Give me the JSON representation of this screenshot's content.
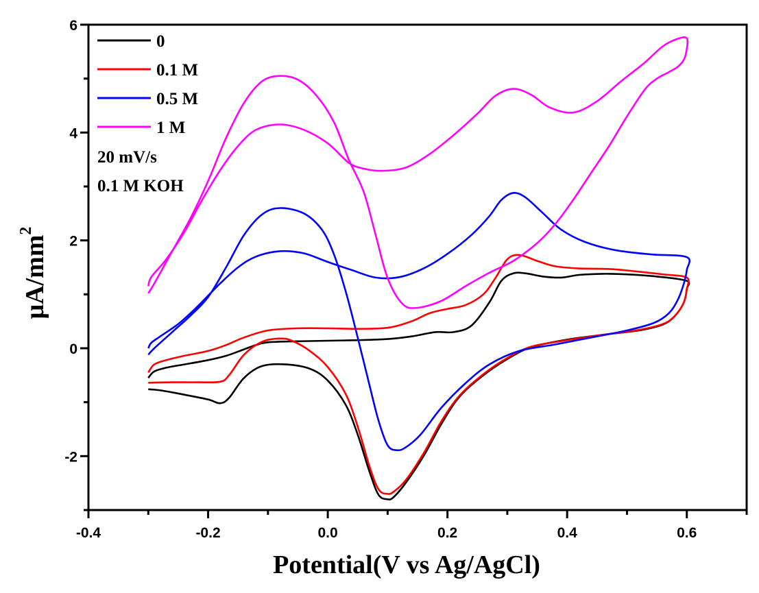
{
  "chart_data": {
    "type": "line",
    "title": "",
    "xlabel": "Potential(V vs Ag/AgCl)",
    "ylabel": "μA/mm",
    "ylabel_superscript": "2",
    "xlim": [
      -0.4,
      0.7
    ],
    "ylim": [
      -3,
      6
    ],
    "xticks": [
      -0.4,
      -0.2,
      0.0,
      0.2,
      0.4,
      0.6
    ],
    "xtick_labels": [
      "-0.4",
      "-0.2",
      "0.0",
      "0.2",
      "0.4",
      "0.6"
    ],
    "xminor_ticks": [
      -0.3,
      -0.1,
      0.1,
      0.3,
      0.5
    ],
    "yticks": [
      -2,
      0,
      2,
      4,
      6
    ],
    "ytick_labels": [
      "-2",
      "0",
      "2",
      "4",
      "6"
    ],
    "yminor_ticks": [
      -3,
      -1,
      1,
      3,
      5
    ],
    "grid": false,
    "legend_position": "top-left",
    "annotations": [
      "20 mV/s",
      "0.1 M KOH"
    ],
    "series": [
      {
        "name": "0",
        "color": "#000000",
        "points": [
          [
            -0.3,
            -0.55
          ],
          [
            -0.29,
            -0.43
          ],
          [
            -0.27,
            -0.36
          ],
          [
            -0.24,
            -0.3
          ],
          [
            -0.2,
            -0.22
          ],
          [
            -0.17,
            -0.14
          ],
          [
            -0.14,
            -0.02
          ],
          [
            -0.12,
            0.06
          ],
          [
            -0.1,
            0.11
          ],
          [
            -0.05,
            0.13
          ],
          [
            0.0,
            0.14
          ],
          [
            0.05,
            0.15
          ],
          [
            0.1,
            0.17
          ],
          [
            0.14,
            0.22
          ],
          [
            0.18,
            0.3
          ],
          [
            0.21,
            0.3
          ],
          [
            0.24,
            0.42
          ],
          [
            0.27,
            0.85
          ],
          [
            0.29,
            1.25
          ],
          [
            0.31,
            1.39
          ],
          [
            0.33,
            1.39
          ],
          [
            0.36,
            1.33
          ],
          [
            0.39,
            1.31
          ],
          [
            0.42,
            1.36
          ],
          [
            0.46,
            1.38
          ],
          [
            0.5,
            1.37
          ],
          [
            0.55,
            1.33
          ],
          [
            0.6,
            1.25
          ],
          [
            0.6,
            1.1
          ],
          [
            0.595,
            0.85
          ],
          [
            0.58,
            0.6
          ],
          [
            0.56,
            0.44
          ],
          [
            0.52,
            0.33
          ],
          [
            0.46,
            0.25
          ],
          [
            0.4,
            0.16
          ],
          [
            0.34,
            0.02
          ],
          [
            0.3,
            -0.2
          ],
          [
            0.26,
            -0.5
          ],
          [
            0.22,
            -0.9
          ],
          [
            0.19,
            -1.4
          ],
          [
            0.16,
            -2.0
          ],
          [
            0.13,
            -2.5
          ],
          [
            0.11,
            -2.76
          ],
          [
            0.1,
            -2.8
          ],
          [
            0.085,
            -2.72
          ],
          [
            0.07,
            -2.3
          ],
          [
            0.05,
            -1.6
          ],
          [
            0.03,
            -1.05
          ],
          [
            0.0,
            -0.6
          ],
          [
            -0.03,
            -0.38
          ],
          [
            -0.07,
            -0.3
          ],
          [
            -0.11,
            -0.33
          ],
          [
            -0.14,
            -0.55
          ],
          [
            -0.165,
            -0.92
          ],
          [
            -0.18,
            -1.02
          ],
          [
            -0.2,
            -0.95
          ],
          [
            -0.24,
            -0.86
          ],
          [
            -0.28,
            -0.78
          ],
          [
            -0.3,
            -0.76
          ]
        ]
      },
      {
        "name": "0.1 M",
        "color": "#ff0000",
        "points": [
          [
            -0.3,
            -0.45
          ],
          [
            -0.29,
            -0.3
          ],
          [
            -0.27,
            -0.22
          ],
          [
            -0.24,
            -0.14
          ],
          [
            -0.2,
            -0.05
          ],
          [
            -0.17,
            0.06
          ],
          [
            -0.14,
            0.2
          ],
          [
            -0.1,
            0.33
          ],
          [
            -0.05,
            0.37
          ],
          [
            0.0,
            0.37
          ],
          [
            0.05,
            0.36
          ],
          [
            0.1,
            0.38
          ],
          [
            0.14,
            0.5
          ],
          [
            0.17,
            0.65
          ],
          [
            0.2,
            0.73
          ],
          [
            0.23,
            0.8
          ],
          [
            0.26,
            1.0
          ],
          [
            0.28,
            1.3
          ],
          [
            0.3,
            1.65
          ],
          [
            0.32,
            1.73
          ],
          [
            0.35,
            1.62
          ],
          [
            0.38,
            1.52
          ],
          [
            0.42,
            1.48
          ],
          [
            0.47,
            1.47
          ],
          [
            0.52,
            1.42
          ],
          [
            0.56,
            1.37
          ],
          [
            0.6,
            1.31
          ],
          [
            0.6,
            1.1
          ],
          [
            0.595,
            0.85
          ],
          [
            0.58,
            0.6
          ],
          [
            0.56,
            0.45
          ],
          [
            0.52,
            0.34
          ],
          [
            0.46,
            0.25
          ],
          [
            0.4,
            0.15
          ],
          [
            0.34,
            0.03
          ],
          [
            0.3,
            -0.18
          ],
          [
            0.26,
            -0.48
          ],
          [
            0.22,
            -0.88
          ],
          [
            0.19,
            -1.35
          ],
          [
            0.16,
            -1.95
          ],
          [
            0.13,
            -2.45
          ],
          [
            0.11,
            -2.66
          ],
          [
            0.1,
            -2.7
          ],
          [
            0.085,
            -2.62
          ],
          [
            0.07,
            -2.2
          ],
          [
            0.05,
            -1.45
          ],
          [
            0.03,
            -0.85
          ],
          [
            0.0,
            -0.35
          ],
          [
            -0.03,
            -0.05
          ],
          [
            -0.06,
            0.14
          ],
          [
            -0.08,
            0.18
          ],
          [
            -0.11,
            0.12
          ],
          [
            -0.14,
            -0.12
          ],
          [
            -0.165,
            -0.5
          ],
          [
            -0.18,
            -0.62
          ],
          [
            -0.22,
            -0.63
          ],
          [
            -0.26,
            -0.63
          ],
          [
            -0.3,
            -0.64
          ]
        ]
      },
      {
        "name": "0.5 M",
        "color": "#0000ff",
        "points": [
          [
            -0.3,
            0.0
          ],
          [
            -0.295,
            0.1
          ],
          [
            -0.28,
            0.22
          ],
          [
            -0.25,
            0.45
          ],
          [
            -0.22,
            0.75
          ],
          [
            -0.18,
            1.2
          ],
          [
            -0.15,
            1.5
          ],
          [
            -0.12,
            1.7
          ],
          [
            -0.08,
            1.8
          ],
          [
            -0.04,
            1.76
          ],
          [
            0.0,
            1.6
          ],
          [
            0.04,
            1.45
          ],
          [
            0.08,
            1.31
          ],
          [
            0.12,
            1.32
          ],
          [
            0.16,
            1.48
          ],
          [
            0.2,
            1.75
          ],
          [
            0.24,
            2.1
          ],
          [
            0.27,
            2.45
          ],
          [
            0.29,
            2.75
          ],
          [
            0.31,
            2.88
          ],
          [
            0.33,
            2.8
          ],
          [
            0.36,
            2.5
          ],
          [
            0.39,
            2.2
          ],
          [
            0.43,
            1.97
          ],
          [
            0.48,
            1.82
          ],
          [
            0.54,
            1.74
          ],
          [
            0.6,
            1.69
          ],
          [
            0.6,
            1.45
          ],
          [
            0.595,
            1.2
          ],
          [
            0.585,
            0.9
          ],
          [
            0.57,
            0.65
          ],
          [
            0.545,
            0.47
          ],
          [
            0.5,
            0.33
          ],
          [
            0.44,
            0.2
          ],
          [
            0.38,
            0.07
          ],
          [
            0.32,
            -0.05
          ],
          [
            0.27,
            -0.3
          ],
          [
            0.23,
            -0.65
          ],
          [
            0.19,
            -1.1
          ],
          [
            0.155,
            -1.6
          ],
          [
            0.13,
            -1.84
          ],
          [
            0.115,
            -1.89
          ],
          [
            0.1,
            -1.8
          ],
          [
            0.085,
            -1.35
          ],
          [
            0.07,
            -0.7
          ],
          [
            0.05,
            0.2
          ],
          [
            0.03,
            1.05
          ],
          [
            0.01,
            1.75
          ],
          [
            -0.01,
            2.2
          ],
          [
            -0.04,
            2.5
          ],
          [
            -0.08,
            2.6
          ],
          [
            -0.11,
            2.48
          ],
          [
            -0.14,
            2.1
          ],
          [
            -0.17,
            1.5
          ],
          [
            -0.2,
            0.95
          ],
          [
            -0.23,
            0.6
          ],
          [
            -0.26,
            0.3
          ],
          [
            -0.29,
            0.0
          ],
          [
            -0.3,
            -0.12
          ]
        ]
      },
      {
        "name": "1 M",
        "color": "#ff00ff",
        "points": [
          [
            -0.3,
            1.15
          ],
          [
            -0.295,
            1.32
          ],
          [
            -0.27,
            1.65
          ],
          [
            -0.24,
            2.15
          ],
          [
            -0.21,
            2.75
          ],
          [
            -0.18,
            3.3
          ],
          [
            -0.15,
            3.75
          ],
          [
            -0.12,
            4.05
          ],
          [
            -0.08,
            4.15
          ],
          [
            -0.04,
            4.05
          ],
          [
            0.0,
            3.8
          ],
          [
            0.035,
            3.44
          ],
          [
            0.06,
            3.33
          ],
          [
            0.09,
            3.29
          ],
          [
            0.13,
            3.35
          ],
          [
            0.17,
            3.6
          ],
          [
            0.21,
            3.95
          ],
          [
            0.25,
            4.35
          ],
          [
            0.28,
            4.68
          ],
          [
            0.31,
            4.81
          ],
          [
            0.34,
            4.7
          ],
          [
            0.37,
            4.47
          ],
          [
            0.41,
            4.37
          ],
          [
            0.45,
            4.58
          ],
          [
            0.49,
            4.95
          ],
          [
            0.53,
            5.3
          ],
          [
            0.56,
            5.6
          ],
          [
            0.585,
            5.74
          ],
          [
            0.6,
            5.75
          ],
          [
            0.6,
            5.55
          ],
          [
            0.595,
            5.35
          ],
          [
            0.585,
            5.22
          ],
          [
            0.57,
            5.12
          ],
          [
            0.55,
            5.0
          ],
          [
            0.53,
            4.8
          ],
          [
            0.5,
            4.3
          ],
          [
            0.47,
            3.75
          ],
          [
            0.44,
            3.25
          ],
          [
            0.41,
            2.75
          ],
          [
            0.38,
            2.3
          ],
          [
            0.35,
            1.95
          ],
          [
            0.31,
            1.62
          ],
          [
            0.27,
            1.4
          ],
          [
            0.23,
            1.15
          ],
          [
            0.19,
            0.88
          ],
          [
            0.15,
            0.75
          ],
          [
            0.125,
            0.82
          ],
          [
            0.1,
            1.3
          ],
          [
            0.08,
            2.1
          ],
          [
            0.06,
            2.9
          ],
          [
            0.035,
            3.5
          ],
          [
            0.01,
            4.2
          ],
          [
            -0.02,
            4.7
          ],
          [
            -0.05,
            4.98
          ],
          [
            -0.08,
            5.05
          ],
          [
            -0.11,
            4.95
          ],
          [
            -0.14,
            4.55
          ],
          [
            -0.17,
            3.9
          ],
          [
            -0.2,
            3.1
          ],
          [
            -0.23,
            2.4
          ],
          [
            -0.26,
            1.8
          ],
          [
            -0.29,
            1.2
          ],
          [
            -0.3,
            1.02
          ]
        ]
      }
    ]
  }
}
